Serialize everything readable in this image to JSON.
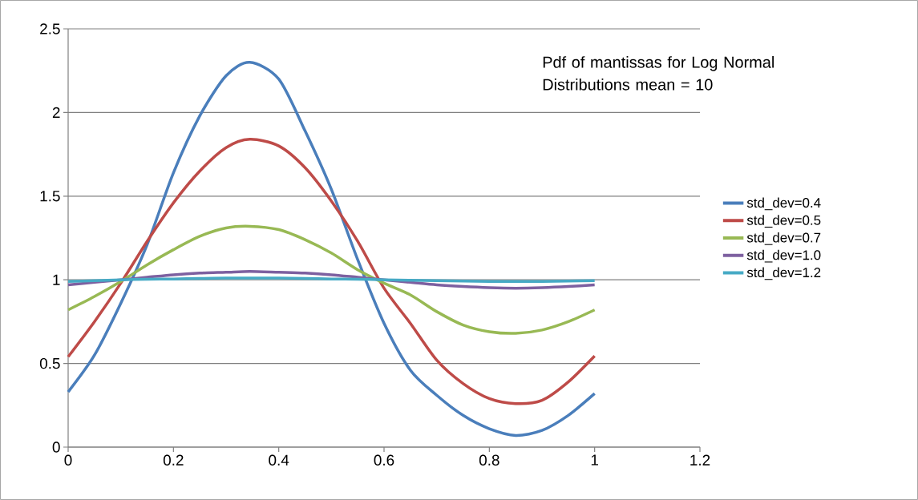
{
  "chart_data": {
    "type": "line",
    "annotations": [
      "Pdf of mantissas for Log Normal Distributions  mean = 10"
    ],
    "x": [
      0,
      0.05,
      0.1,
      0.15,
      0.2,
      0.25,
      0.3,
      0.345,
      0.4,
      0.45,
      0.5,
      0.55,
      0.6,
      0.65,
      0.7,
      0.75,
      0.8,
      0.85,
      0.9,
      0.95,
      1
    ],
    "series": [
      {
        "name": "std_dev=0.4",
        "color": "#4a7ebb",
        "values": [
          0.33,
          0.55,
          0.86,
          1.21,
          1.64,
          1.98,
          2.22,
          2.3,
          2.2,
          1.89,
          1.54,
          1.12,
          0.74,
          0.46,
          0.31,
          0.19,
          0.11,
          0.07,
          0.1,
          0.19,
          0.32
        ]
      },
      {
        "name": "std_dev=0.5",
        "color": "#be4b48",
        "values": [
          0.54,
          0.75,
          0.98,
          1.23,
          1.46,
          1.65,
          1.79,
          1.84,
          1.8,
          1.67,
          1.47,
          1.23,
          0.95,
          0.74,
          0.52,
          0.38,
          0.29,
          0.26,
          0.28,
          0.39,
          0.545
        ]
      },
      {
        "name": "std_dev=0.7",
        "color": "#98b954",
        "values": [
          0.82,
          0.9,
          0.99,
          1.09,
          1.18,
          1.26,
          1.31,
          1.32,
          1.3,
          1.24,
          1.16,
          1.06,
          0.98,
          0.91,
          0.81,
          0.73,
          0.69,
          0.68,
          0.7,
          0.75,
          0.82
        ]
      },
      {
        "name": "std_dev=1.0",
        "color": "#7d60a0",
        "values": [
          0.97,
          0.985,
          1.0,
          1.015,
          1.03,
          1.04,
          1.045,
          1.05,
          1.045,
          1.04,
          1.03,
          1.015,
          1.0,
          0.985,
          0.97,
          0.96,
          0.953,
          0.95,
          0.953,
          0.96,
          0.97
        ]
      },
      {
        "name": "std_dev=1.2",
        "color": "#46aac5",
        "values": [
          0.99,
          0.995,
          1.0,
          1.003,
          1.005,
          1.008,
          1.01,
          1.01,
          1.01,
          1.008,
          1.005,
          1.003,
          1.0,
          0.997,
          0.995,
          0.993,
          0.99,
          0.99,
          0.99,
          0.993,
          0.995
        ]
      }
    ],
    "xlim": [
      0,
      1.2
    ],
    "ylim": [
      0,
      2.5
    ],
    "xticks": [
      0,
      0.2,
      0.4,
      0.6,
      0.8,
      1,
      1.2
    ],
    "yticks": [
      0,
      0.5,
      1,
      1.5,
      2,
      2.5
    ],
    "grid": "y",
    "legend": "right"
  }
}
